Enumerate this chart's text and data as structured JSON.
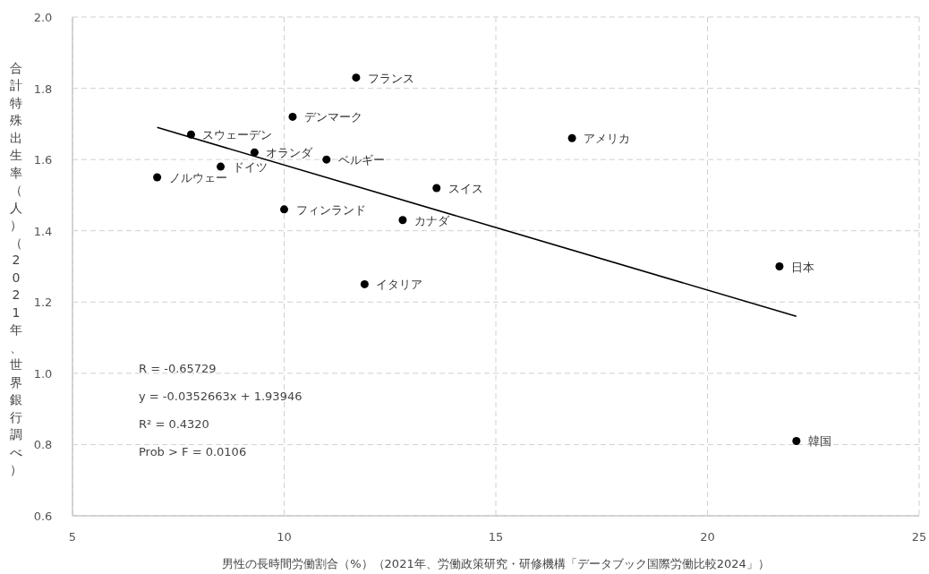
{
  "chart_data": {
    "type": "scatter",
    "xlabel": "男性の長時間労働割合（%）（2021年、労働政策研究・研修機構「データブック国際労働比較2024」）",
    "ylabel": "合計特殊出生率（人）（2021年、世界銀行調べ）",
    "xlim": [
      5,
      25
    ],
    "ylim": [
      0.6,
      2.0
    ],
    "xticks": [
      5,
      10,
      15,
      20,
      25
    ],
    "yticks": [
      0.6,
      0.8,
      {
        "value": 1,
        "label": "1.0"
      },
      1.2,
      1.4,
      1.6,
      1.8,
      {
        "value": 2,
        "label": "2.0"
      }
    ],
    "grid": true,
    "series": [
      {
        "type": "scatter",
        "marker": "circle",
        "color": "#000000",
        "x": [
          11.7,
          10.2,
          7.8,
          9.3,
          11.0,
          8.5,
          7.0,
          13.6,
          10.0,
          12.8,
          11.9,
          16.8,
          21.7,
          22.1
        ],
        "values": [
          1.83,
          1.72,
          1.67,
          1.62,
          1.6,
          1.58,
          1.55,
          1.52,
          1.46,
          1.43,
          1.25,
          1.66,
          1.3,
          0.81
        ]
      },
      {
        "type": "line",
        "color": "#000000",
        "x": [
          7.0,
          22.1
        ],
        "values": [
          1.69,
          1.16
        ]
      }
    ],
    "annotations": [
      {
        "text": "フランス",
        "x": 11.7,
        "y": 1.83
      },
      {
        "text": "デンマーク",
        "x": 10.2,
        "y": 1.72
      },
      {
        "text": "スウェーデン",
        "x": 7.8,
        "y": 1.67
      },
      {
        "text": "オランダ",
        "x": 9.3,
        "y": 1.62
      },
      {
        "text": "ベルギー",
        "x": 11.0,
        "y": 1.6
      },
      {
        "text": "ドイツ",
        "x": 8.5,
        "y": 1.58
      },
      {
        "text": "ノルウェー",
        "x": 7.0,
        "y": 1.55
      },
      {
        "text": "スイス",
        "x": 13.6,
        "y": 1.52
      },
      {
        "text": "フィンランド",
        "x": 10.0,
        "y": 1.46
      },
      {
        "text": "カナダ",
        "x": 12.8,
        "y": 1.43
      },
      {
        "text": "イタリア",
        "x": 11.9,
        "y": 1.25
      },
      {
        "text": "アメリカ",
        "x": 16.8,
        "y": 1.66
      },
      {
        "text": "日本",
        "x": 21.7,
        "y": 1.3
      },
      {
        "text": "韓国",
        "x": 22.1,
        "y": 0.81
      },
      "R = -0.65729",
      "y = -0.0352663x + 1.93946",
      "R² = 0.4320",
      "Prob > F = 0.0106"
    ]
  }
}
